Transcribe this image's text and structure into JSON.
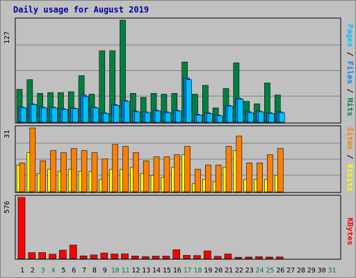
{
  "title": "Daily usage for August 2019",
  "colors": {
    "hits": "#008040",
    "files": "#0080ff",
    "pages": "#00c0ff",
    "visits": "#ffff00",
    "sites": "#ff8000",
    "kbytes": "#ff0000",
    "title": "#0000a0",
    "weekend_day": "#00805c",
    "weekday": "#000000",
    "panel_bg": "#c0c0c0",
    "gridline": "#808080"
  },
  "chart_data": [
    {
      "type": "bar",
      "panel": "hits-files-pages",
      "y_tick_label": "127",
      "ylim": [
        0,
        127
      ],
      "grid": true,
      "x": [
        1,
        2,
        3,
        4,
        5,
        6,
        7,
        8,
        9,
        10,
        11,
        12,
        13,
        14,
        15,
        16,
        17,
        18,
        19,
        20,
        21,
        22,
        23,
        24,
        25,
        26,
        27,
        28,
        29,
        30,
        31
      ],
      "series": [
        {
          "name": "Hits",
          "color": "#008040",
          "values": [
            41,
            53,
            36,
            37,
            37,
            38,
            58,
            35,
            89,
            89,
            127,
            36,
            31,
            36,
            35,
            36,
            75,
            35,
            46,
            18,
            42,
            74,
            26,
            23,
            49,
            34,
            0,
            0,
            0,
            0,
            0
          ]
        },
        {
          "name": "Files",
          "color": "#0080ff",
          "values": [
            19,
            23,
            19,
            19,
            17,
            18,
            34,
            19,
            12,
            22,
            27,
            14,
            13,
            15,
            13,
            15,
            55,
            10,
            12,
            9,
            21,
            30,
            13,
            14,
            12,
            13,
            0,
            0,
            0,
            0,
            0
          ]
        },
        {
          "name": "Pages",
          "color": "#00c0ff",
          "values": [
            18,
            22,
            18,
            18,
            16,
            17,
            32,
            18,
            11,
            21,
            26,
            13,
            12,
            14,
            12,
            14,
            53,
            9,
            11,
            8,
            20,
            29,
            12,
            13,
            11,
            12,
            0,
            0,
            0,
            0,
            0
          ]
        }
      ]
    },
    {
      "type": "bar",
      "panel": "visits-sites",
      "y_tick_label": "31",
      "ylim": [
        0,
        31
      ],
      "grid": true,
      "x": [
        1,
        2,
        3,
        4,
        5,
        6,
        7,
        8,
        9,
        10,
        11,
        12,
        13,
        14,
        15,
        16,
        17,
        18,
        19,
        20,
        21,
        22,
        23,
        24,
        25,
        26,
        27,
        28,
        29,
        30,
        31
      ],
      "series": [
        {
          "name": "Visits",
          "color": "#ffff00",
          "values": [
            13,
            19,
            9,
            11,
            10,
            11,
            10,
            10,
            6,
            11,
            11,
            12,
            9,
            8,
            7,
            12,
            18,
            4,
            6,
            5,
            12,
            20,
            6,
            6,
            6,
            8,
            0,
            0,
            0,
            0,
            0
          ]
        },
        {
          "name": "Sites",
          "color": "#ff8000",
          "values": [
            14,
            31,
            15,
            20,
            19,
            21,
            20,
            19,
            16,
            23,
            22,
            19,
            15,
            17,
            17,
            18,
            22,
            11,
            13,
            13,
            22,
            27,
            14,
            14,
            18,
            21,
            0,
            0,
            0,
            0,
            0
          ]
        }
      ]
    },
    {
      "type": "bar",
      "panel": "kbytes",
      "y_tick_label": "576",
      "ylim": [
        0,
        576
      ],
      "grid": false,
      "x": [
        1,
        2,
        3,
        4,
        5,
        6,
        7,
        8,
        9,
        10,
        11,
        12,
        13,
        14,
        15,
        16,
        17,
        18,
        19,
        20,
        21,
        22,
        23,
        24,
        25,
        26,
        27,
        28,
        29,
        30,
        31
      ],
      "series": [
        {
          "name": "KBytes",
          "color": "#ff0000",
          "values": [
            576,
            56,
            56,
            41,
            79,
            127,
            25,
            34,
            52,
            44,
            45,
            24,
            19,
            23,
            23,
            83,
            30,
            28,
            72,
            21,
            43,
            12,
            14,
            18,
            14,
            15,
            0,
            0,
            0,
            0,
            0
          ]
        }
      ]
    }
  ],
  "right_labels": {
    "top": [
      {
        "text": "Pages",
        "color": "#00c0ff"
      },
      {
        "text": "Files",
        "color": "#0080ff"
      },
      {
        "text": "Hits",
        "color": "#008040"
      }
    ],
    "mid": [
      {
        "text": "Sites",
        "color": "#ff8000"
      },
      {
        "text": "Visits",
        "color": "#ffff00"
      }
    ],
    "bottom": [
      {
        "text": "KBytes",
        "color": "#ff0000"
      }
    ],
    "separator": " / "
  },
  "x_labels": [
    "1",
    "2",
    "3",
    "4",
    "5",
    "6",
    "7",
    "8",
    "9",
    "10",
    "11",
    "12",
    "13",
    "14",
    "15",
    "16",
    "17",
    "18",
    "19",
    "20",
    "21",
    "22",
    "23",
    "24",
    "25",
    "26",
    "27",
    "28",
    "29",
    "30",
    "31"
  ],
  "weekend_days": [
    3,
    4,
    10,
    11,
    17,
    18,
    24,
    25,
    31
  ]
}
